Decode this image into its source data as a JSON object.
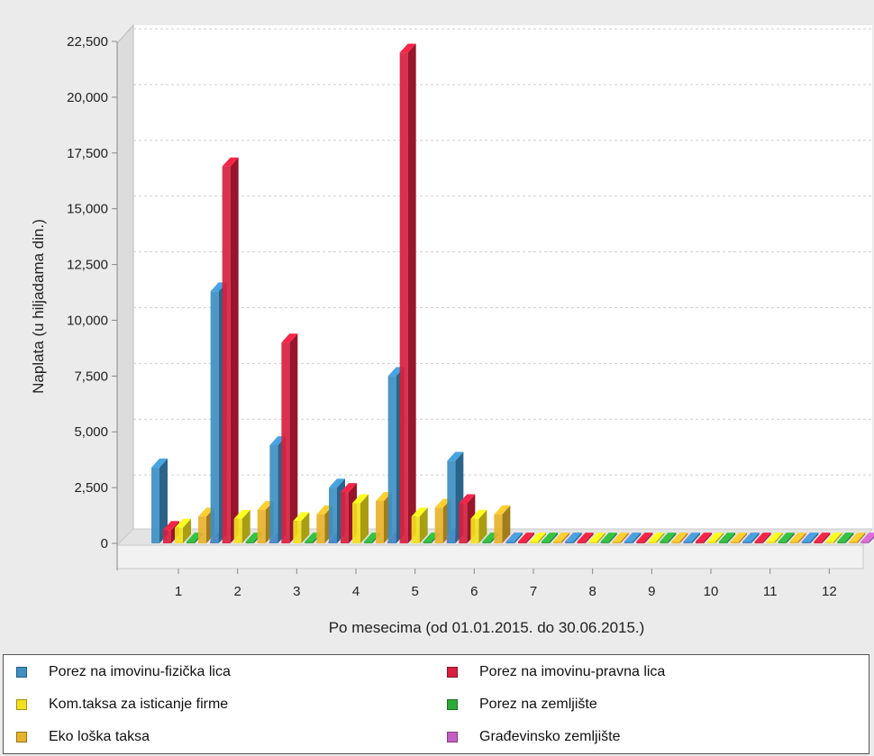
{
  "chart_data": {
    "type": "bar",
    "style": "3d-clustered",
    "categories": [
      "1",
      "2",
      "3",
      "4",
      "5",
      "6",
      "7",
      "8",
      "9",
      "10",
      "11",
      "12"
    ],
    "xlabel": "Po mesecima (od 01.01.2015. do 30.06.2015.)",
    "ylabel": "Naplata (u hiljadama din.)",
    "ylim": [
      0,
      22500
    ],
    "yticks": [
      0,
      2500,
      5000,
      7500,
      10000,
      12500,
      15000,
      17500,
      20000,
      22500
    ],
    "ytick_labels": [
      "0",
      "2,500",
      "5,000",
      "7,500",
      "10,000",
      "12,500",
      "15,000",
      "17,500",
      "20,000",
      "22,500"
    ],
    "grid": true,
    "legend_position": "bottom",
    "series": [
      {
        "name": "Porez na imovinu-fizička lica",
        "color": "#3d8fc4",
        "values": [
          3400,
          11300,
          4400,
          2500,
          7500,
          3700,
          0,
          0,
          0,
          0,
          0,
          0
        ]
      },
      {
        "name": "Porez na imovinu-pravna lica",
        "color": "#d81f3f",
        "values": [
          600,
          16900,
          9000,
          2300,
          22000,
          1800,
          0,
          0,
          0,
          0,
          0,
          0
        ]
      },
      {
        "name": "Kom.taksa za isticanje firme",
        "color": "#f2e01c",
        "values": [
          700,
          1100,
          1000,
          1800,
          1200,
          1100,
          0,
          0,
          0,
          0,
          0,
          0
        ]
      },
      {
        "name": "Porez na zemljište",
        "color": "#2eaa3a",
        "values": [
          0,
          0,
          0,
          0,
          0,
          0,
          0,
          0,
          0,
          0,
          0,
          0
        ]
      },
      {
        "name": "Eko loška taksa",
        "color": "#e8b32a",
        "values": [
          1200,
          1500,
          1300,
          1900,
          1600,
          1300,
          0,
          0,
          0,
          0,
          0,
          0
        ]
      },
      {
        "name": "Građevinsko zemljište",
        "color": "#c35fc1",
        "values": [
          0,
          0,
          0,
          0,
          300,
          0,
          0,
          0,
          0,
          0,
          0,
          0
        ]
      }
    ]
  }
}
